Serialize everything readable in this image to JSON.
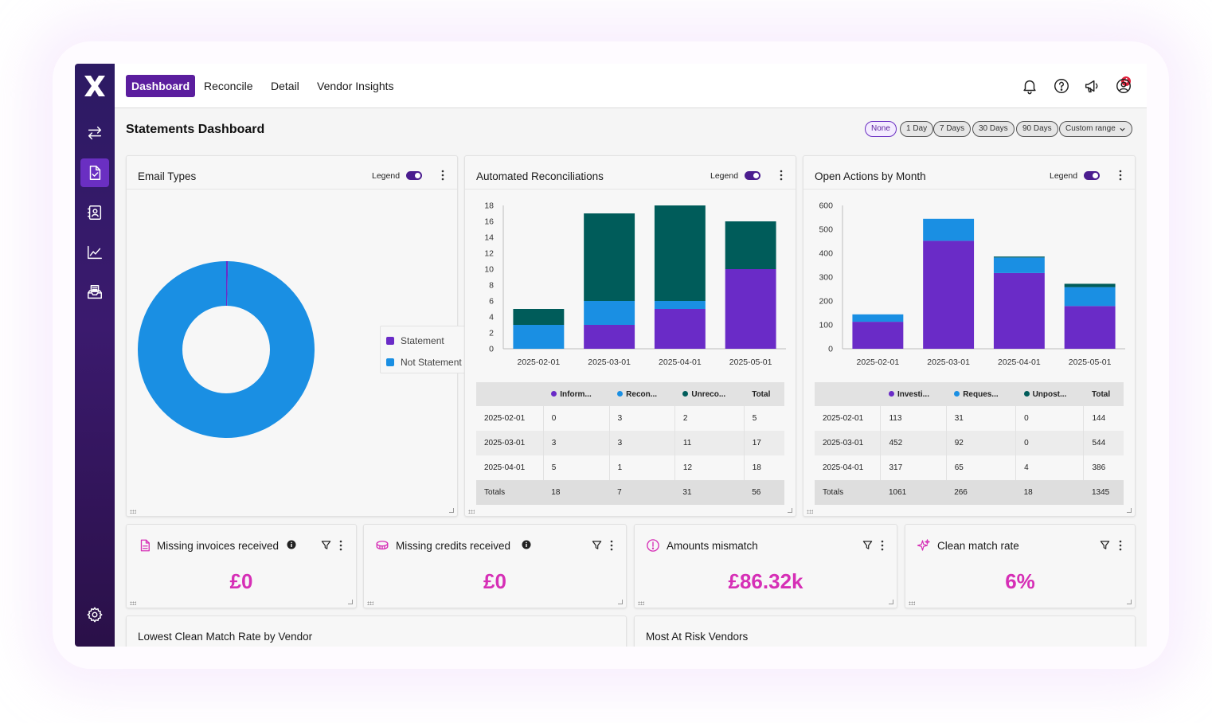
{
  "nav": {
    "tabs": [
      {
        "label": "Dashboard",
        "active": true
      },
      {
        "label": "Reconcile",
        "active": false
      },
      {
        "label": "Detail",
        "active": false
      },
      {
        "label": "Vendor Insights",
        "active": false
      }
    ],
    "notification_count": "4"
  },
  "page": {
    "title": "Statements Dashboard",
    "ranges": [
      "None",
      "1 Day",
      "7 Days",
      "30 Days",
      "90 Days",
      "Custom range"
    ],
    "selected_range": "None"
  },
  "colors": {
    "purple": "#6a2bc7",
    "blue": "#1a8fe3",
    "teal": "#005c5a",
    "kpi": "#d62fb6"
  },
  "email_types": {
    "title": "Email Types",
    "legend_label": "Legend",
    "items": [
      {
        "name": "Statement",
        "value": "2"
      },
      {
        "name": "Not Statement",
        "value": "583"
      }
    ]
  },
  "automated": {
    "title": "Automated Reconciliations",
    "legend_label": "Legend",
    "table": {
      "headers": [
        "",
        "Inform...",
        "Recon...",
        "Unreco...",
        "Total"
      ],
      "rows": [
        [
          "2025-02-01",
          "0",
          "3",
          "2",
          "5"
        ],
        [
          "2025-03-01",
          "3",
          "3",
          "11",
          "17"
        ],
        [
          "2025-04-01",
          "5",
          "1",
          "12",
          "18"
        ]
      ],
      "totals": [
        "Totals",
        "18",
        "7",
        "31",
        "56"
      ]
    }
  },
  "open_actions": {
    "title": "Open Actions by Month",
    "legend_label": "Legend",
    "table": {
      "headers": [
        "",
        "Investi...",
        "Reques...",
        "Unpost...",
        "Total"
      ],
      "rows": [
        [
          "2025-02-01",
          "113",
          "31",
          "0",
          "144"
        ],
        [
          "2025-03-01",
          "452",
          "92",
          "0",
          "544"
        ],
        [
          "2025-04-01",
          "317",
          "65",
          "4",
          "386"
        ]
      ],
      "totals": [
        "Totals",
        "1061",
        "266",
        "18",
        "1345"
      ]
    }
  },
  "kpis": [
    {
      "title": "Missing invoices received",
      "value": "£0"
    },
    {
      "title": "Missing credits received",
      "value": "£0"
    },
    {
      "title": "Amounts mismatch",
      "value": "£86.32k"
    },
    {
      "title": "Clean match rate",
      "value": "6%"
    }
  ],
  "bottom": {
    "left_title": "Lowest Clean Match Rate by Vendor",
    "right_title": "Most At Risk Vendors"
  },
  "chart_data": [
    {
      "type": "pie",
      "title": "Email Types",
      "categories": [
        "Statement",
        "Not Statement"
      ],
      "values": [
        2,
        583
      ]
    },
    {
      "type": "bar",
      "stacked": true,
      "title": "Automated Reconciliations",
      "categories": [
        "2025-02-01",
        "2025-03-01",
        "2025-04-01",
        "2025-05-01"
      ],
      "ylim": [
        0,
        18
      ],
      "yticks": [
        0,
        2,
        4,
        6,
        8,
        10,
        12,
        14,
        16,
        18
      ],
      "series": [
        {
          "name": "Inform...",
          "values": [
            0,
            3,
            5,
            10
          ]
        },
        {
          "name": "Recon...",
          "values": [
            3,
            3,
            1,
            0
          ]
        },
        {
          "name": "Unreco...",
          "values": [
            2,
            11,
            12,
            6
          ]
        }
      ]
    },
    {
      "type": "bar",
      "stacked": true,
      "title": "Open Actions by Month",
      "categories": [
        "2025-02-01",
        "2025-03-01",
        "2025-04-01",
        "2025-05-01"
      ],
      "ylim": [
        0,
        600
      ],
      "yticks": [
        0,
        100,
        200,
        300,
        400,
        500,
        600
      ],
      "series": [
        {
          "name": "Investi...",
          "values": [
            113,
            452,
            317,
            179
          ]
        },
        {
          "name": "Reques...",
          "values": [
            31,
            92,
            65,
            79
          ]
        },
        {
          "name": "Unpost...",
          "values": [
            0,
            0,
            4,
            14
          ]
        }
      ]
    }
  ]
}
